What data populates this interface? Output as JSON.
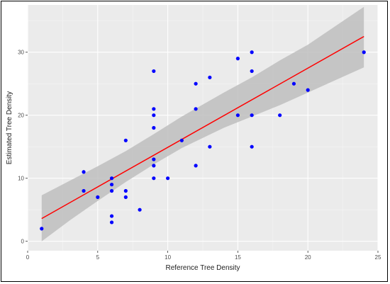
{
  "chart_data": {
    "type": "scatter",
    "title": "",
    "xlabel": "Reference Tree Density",
    "ylabel": "Estimated Tree Density",
    "xlim": [
      0,
      25
    ],
    "ylim": [
      -1.5,
      37.5
    ],
    "x_ticks": [
      0,
      5,
      10,
      15,
      20,
      25
    ],
    "y_ticks": [
      0,
      10,
      20,
      30
    ],
    "grid": true,
    "legend": "none",
    "colors": {
      "panel": "#ebebeb",
      "grid_major": "#ffffff",
      "grid_minor": "#f5f5f5",
      "points": "#0000ff",
      "fit_line": "#ff0000",
      "confidence_band": "#bebebe"
    },
    "points": [
      {
        "x": 1,
        "y": 2
      },
      {
        "x": 4,
        "y": 11
      },
      {
        "x": 4,
        "y": 8
      },
      {
        "x": 5,
        "y": 7
      },
      {
        "x": 6,
        "y": 10
      },
      {
        "x": 6,
        "y": 9
      },
      {
        "x": 6,
        "y": 8
      },
      {
        "x": 6,
        "y": 4
      },
      {
        "x": 6,
        "y": 3
      },
      {
        "x": 7,
        "y": 16
      },
      {
        "x": 7,
        "y": 8
      },
      {
        "x": 7,
        "y": 7
      },
      {
        "x": 8,
        "y": 5
      },
      {
        "x": 9,
        "y": 27
      },
      {
        "x": 9,
        "y": 21
      },
      {
        "x": 9,
        "y": 20
      },
      {
        "x": 9,
        "y": 18
      },
      {
        "x": 9,
        "y": 13
      },
      {
        "x": 9,
        "y": 12
      },
      {
        "x": 9,
        "y": 10
      },
      {
        "x": 10,
        "y": 10
      },
      {
        "x": 11,
        "y": 16
      },
      {
        "x": 12,
        "y": 25
      },
      {
        "x": 12,
        "y": 21
      },
      {
        "x": 12,
        "y": 12
      },
      {
        "x": 13,
        "y": 26
      },
      {
        "x": 13,
        "y": 15
      },
      {
        "x": 15,
        "y": 29
      },
      {
        "x": 15,
        "y": 20
      },
      {
        "x": 16,
        "y": 30
      },
      {
        "x": 16,
        "y": 27
      },
      {
        "x": 16,
        "y": 20
      },
      {
        "x": 16,
        "y": 15
      },
      {
        "x": 18,
        "y": 20
      },
      {
        "x": 19,
        "y": 25
      },
      {
        "x": 20,
        "y": 24
      },
      {
        "x": 24,
        "y": 30
      }
    ],
    "fit": {
      "method": "linear",
      "x": [
        1,
        24
      ],
      "y": [
        3.6,
        32.5
      ],
      "band_x": [
        1,
        3,
        5,
        7,
        9,
        11,
        12.5,
        14,
        16,
        18,
        20,
        22,
        24
      ],
      "band_lower": [
        0.0,
        3.3,
        6.4,
        9.4,
        12.2,
        14.8,
        16.4,
        18.0,
        19.8,
        21.6,
        23.6,
        25.6,
        27.6
      ],
      "band_upper": [
        7.3,
        9.6,
        11.9,
        14.3,
        17.0,
        19.8,
        21.7,
        23.6,
        26.0,
        28.7,
        31.2,
        34.2,
        37.2
      ]
    }
  }
}
